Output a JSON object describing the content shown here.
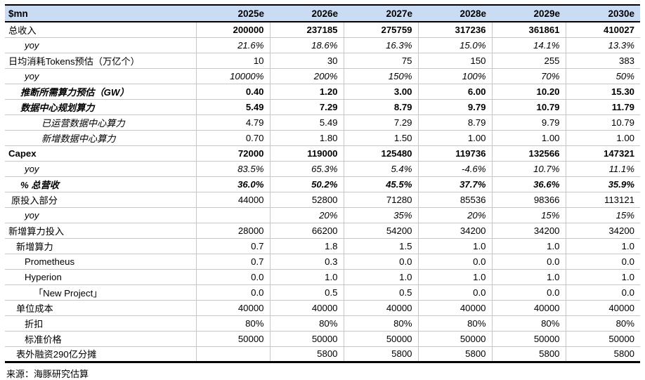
{
  "chart_data": {
    "type": "table",
    "unit": "$mn",
    "columns": [
      "2025e",
      "2026e",
      "2027e",
      "2028e",
      "2029e",
      "2030e"
    ],
    "rows": [
      {
        "label": "总收入",
        "indent": 0,
        "label_style": "",
        "value_style": "b",
        "values": [
          "200000",
          "237185",
          "275759",
          "317236",
          "361861",
          "410027"
        ]
      },
      {
        "label": "yoy",
        "indent": 4,
        "label_style": "i",
        "value_style": "i",
        "values": [
          "21.6%",
          "18.6%",
          "16.3%",
          "15.0%",
          "14.1%",
          "13.3%"
        ]
      },
      {
        "label": "日均消耗Tokens预估（万亿个）",
        "indent": 0,
        "label_style": "",
        "value_style": "",
        "values": [
          "10",
          "30",
          "75",
          "150",
          "255",
          "383"
        ]
      },
      {
        "label": "yoy",
        "indent": 4,
        "label_style": "i",
        "value_style": "i",
        "values": [
          "10000%",
          "200%",
          "150%",
          "100%",
          "70%",
          "50%"
        ]
      },
      {
        "label": "推断所需算力预估（GW）",
        "indent": 3,
        "label_style": "bi",
        "value_style": "b",
        "values": [
          "0.40",
          "1.20",
          "3.00",
          "6.00",
          "10.20",
          "15.30"
        ]
      },
      {
        "label": "数据中心规划算力",
        "indent": 3,
        "label_style": "bi",
        "value_style": "b",
        "values": [
          "5.49",
          "7.29",
          "8.79",
          "9.79",
          "10.79",
          "11.79"
        ]
      },
      {
        "label": "已运营数据中心算力",
        "indent": 6,
        "label_style": "i",
        "value_style": "",
        "values": [
          "4.79",
          "5.49",
          "7.29",
          "8.79",
          "9.79",
          "10.79"
        ]
      },
      {
        "label": "新增数据中心算力",
        "indent": 6,
        "label_style": "i",
        "value_style": "",
        "values": [
          "0.70",
          "1.80",
          "1.50",
          "1.00",
          "1.00",
          "1.00"
        ]
      },
      {
        "label": "Capex",
        "indent": 0,
        "label_style": "b",
        "value_style": "b",
        "values": [
          "72000",
          "119000",
          "125480",
          "119736",
          "132566",
          "147321"
        ]
      },
      {
        "label": "yoy",
        "indent": 4,
        "label_style": "i",
        "value_style": "i",
        "values": [
          "83.5%",
          "65.3%",
          "5.4%",
          "-4.6%",
          "10.7%",
          "11.1%"
        ]
      },
      {
        "label": "% 总营收",
        "indent": 3,
        "label_style": "bi",
        "value_style": "bi",
        "values": [
          "36.0%",
          "50.2%",
          "45.5%",
          "37.7%",
          "36.6%",
          "35.9%"
        ]
      },
      {
        "label": "原投入部分",
        "indent": 1,
        "label_style": "",
        "value_style": "",
        "values": [
          "44000",
          "52800",
          "71280",
          "85536",
          "98366",
          "113121"
        ]
      },
      {
        "label": "yoy",
        "indent": 4,
        "label_style": "i",
        "value_style": "i",
        "values": [
          "",
          "20%",
          "35%",
          "20%",
          "15%",
          "15%"
        ]
      },
      {
        "label": "新增算力投入",
        "indent": 0,
        "label_style": "",
        "value_style": "",
        "values": [
          "28000",
          "66200",
          "54200",
          "34200",
          "34200",
          "34200"
        ]
      },
      {
        "label": "新增算力",
        "indent": 2,
        "label_style": "",
        "value_style": "",
        "values": [
          "0.7",
          "1.8",
          "1.5",
          "1.0",
          "1.0",
          "1.0"
        ]
      },
      {
        "label": "Prometheus",
        "indent": 4,
        "label_style": "",
        "value_style": "",
        "values": [
          "0.7",
          "0.3",
          "0.0",
          "0.0",
          "0.0",
          "0.0"
        ]
      },
      {
        "label": "Hyperion",
        "indent": 4,
        "label_style": "",
        "value_style": "",
        "values": [
          "0.0",
          "1.0",
          "1.0",
          "1.0",
          "1.0",
          "1.0"
        ]
      },
      {
        "label": "「New Project」",
        "indent": 5,
        "label_style": "",
        "value_style": "",
        "values": [
          "0.0",
          "0.5",
          "0.5",
          "0.0",
          "0.0",
          "0.0"
        ]
      },
      {
        "label": "单位成本",
        "indent": 2,
        "label_style": "",
        "value_style": "",
        "values": [
          "40000",
          "40000",
          "40000",
          "40000",
          "40000",
          "40000"
        ]
      },
      {
        "label": "折扣",
        "indent": 4,
        "label_style": "",
        "value_style": "",
        "values": [
          "80%",
          "80%",
          "80%",
          "80%",
          "80%",
          "80%"
        ]
      },
      {
        "label": "标准价格",
        "indent": 4,
        "label_style": "",
        "value_style": "",
        "values": [
          "50000",
          "50000",
          "50000",
          "50000",
          "50000",
          "50000"
        ]
      },
      {
        "label": "表外融资290亿分摊",
        "indent": 2,
        "label_style": "",
        "value_style": "",
        "values": [
          "",
          "5800",
          "5800",
          "5800",
          "5800",
          "5800"
        ]
      }
    ]
  },
  "source": "来源：海豚研究估算",
  "colors": {
    "header_bg": "#c9dcf3",
    "border_dark": "#000000",
    "grid_line": "#c6c6c6"
  }
}
